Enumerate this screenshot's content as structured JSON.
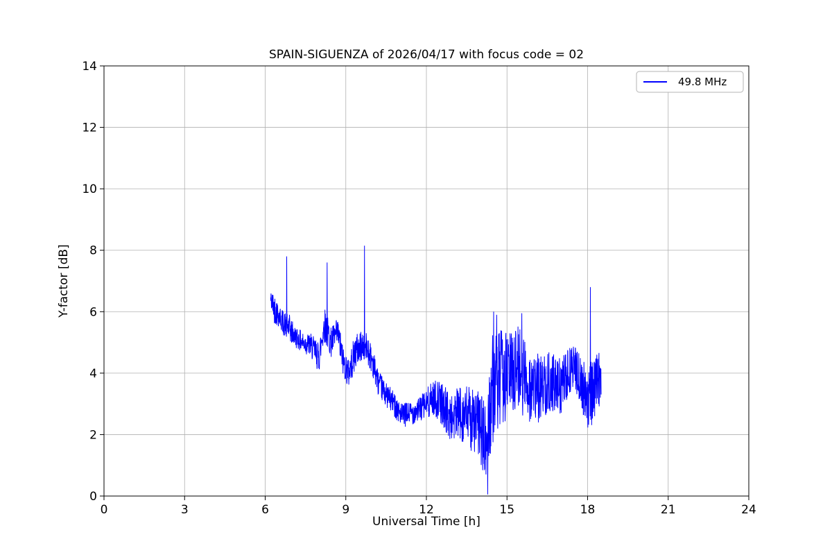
{
  "figure": {
    "title": "SPAIN-SIGUENZA of 2026/04/17 with focus code = 02",
    "xlabel": "Universal Time [h]",
    "ylabel": "Y-factor [dB]",
    "background": "#ffffff"
  },
  "legend": {
    "label": "49.8 MHz",
    "line_color": "#0000ff"
  },
  "chart_data": {
    "type": "line",
    "title": "SPAIN-SIGUENZA of 2026/04/17 with focus code = 02",
    "xlabel": "Universal Time [h]",
    "ylabel": "Y-factor [dB]",
    "xlim": [
      0,
      24
    ],
    "ylim": [
      0,
      14
    ],
    "xticks": [
      0,
      3,
      6,
      9,
      12,
      15,
      18,
      21,
      24
    ],
    "yticks": [
      0,
      2,
      4,
      6,
      8,
      10,
      12,
      14
    ],
    "grid": true,
    "grid_color": "#b0b0b0",
    "legend_position": "upper right",
    "series": [
      {
        "name": "49.8 MHz",
        "color": "#0000ff",
        "x_start": 6.2,
        "x_end": 18.5,
        "sample_step": 0.008,
        "noise_seed": 42,
        "envelope": [
          [
            6.2,
            6.4,
            0.3
          ],
          [
            6.35,
            6.1,
            0.5
          ],
          [
            6.5,
            5.9,
            0.4
          ],
          [
            6.7,
            5.6,
            0.4
          ],
          [
            6.85,
            5.5,
            0.5
          ],
          [
            7.1,
            5.2,
            0.35
          ],
          [
            7.4,
            5.0,
            0.35
          ],
          [
            7.7,
            4.9,
            0.4
          ],
          [
            8.0,
            4.5,
            0.5
          ],
          [
            8.2,
            5.6,
            0.6
          ],
          [
            8.45,
            5.0,
            0.5
          ],
          [
            8.7,
            5.3,
            0.5
          ],
          [
            8.9,
            4.4,
            0.5
          ],
          [
            9.1,
            4.0,
            0.5
          ],
          [
            9.35,
            4.7,
            0.6
          ],
          [
            9.6,
            4.9,
            0.5
          ],
          [
            9.8,
            4.8,
            0.5
          ],
          [
            10.0,
            4.4,
            0.5
          ],
          [
            10.2,
            3.7,
            0.4
          ],
          [
            10.5,
            3.3,
            0.4
          ],
          [
            10.8,
            3.0,
            0.4
          ],
          [
            11.1,
            2.6,
            0.4
          ],
          [
            11.4,
            2.7,
            0.4
          ],
          [
            11.7,
            2.8,
            0.4
          ],
          [
            12.0,
            3.0,
            0.5
          ],
          [
            12.3,
            3.2,
            0.6
          ],
          [
            12.6,
            3.0,
            0.7
          ],
          [
            12.9,
            2.5,
            0.8
          ],
          [
            13.2,
            2.7,
            0.9
          ],
          [
            13.5,
            2.6,
            1.0
          ],
          [
            13.8,
            2.4,
            1.1
          ],
          [
            14.0,
            2.3,
            1.2
          ],
          [
            14.2,
            1.5,
            1.4
          ],
          [
            14.45,
            3.5,
            1.8
          ],
          [
            14.8,
            3.8,
            1.6
          ],
          [
            15.1,
            4.0,
            1.4
          ],
          [
            15.4,
            4.2,
            1.4
          ],
          [
            15.7,
            3.8,
            1.4
          ],
          [
            16.0,
            3.4,
            1.2
          ],
          [
            16.3,
            3.6,
            1.1
          ],
          [
            16.6,
            3.7,
            1.0
          ],
          [
            16.9,
            3.5,
            1.0
          ],
          [
            17.2,
            3.8,
            0.9
          ],
          [
            17.5,
            4.3,
            0.7
          ],
          [
            17.8,
            3.5,
            0.9
          ],
          [
            18.05,
            3.2,
            1.1
          ],
          [
            18.3,
            3.6,
            1.0
          ],
          [
            18.5,
            3.9,
            0.9
          ]
        ],
        "spikes": [
          [
            6.8,
            7.8
          ],
          [
            8.3,
            7.6
          ],
          [
            9.7,
            8.15
          ],
          [
            14.28,
            0.05
          ],
          [
            14.5,
            6.0
          ],
          [
            14.62,
            5.9
          ],
          [
            15.55,
            5.95
          ],
          [
            18.1,
            6.8
          ]
        ]
      }
    ]
  }
}
